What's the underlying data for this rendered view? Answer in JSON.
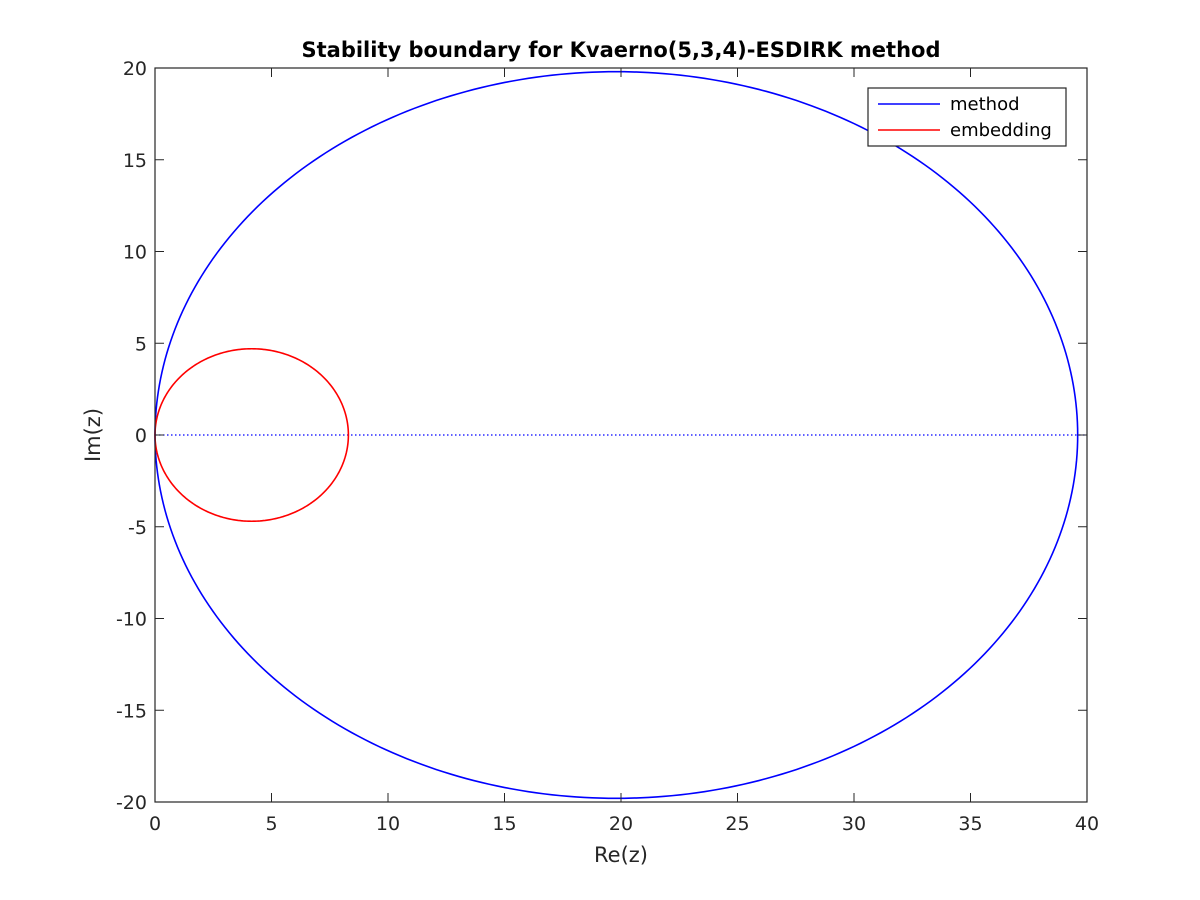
{
  "chart_data": {
    "type": "line",
    "title": "Stability boundary for Kvaerno(5,3,4)-ESDIRK method",
    "xlabel": "Re(z)",
    "ylabel": "Im(z)",
    "xlim": [
      0,
      40
    ],
    "ylim": [
      -20,
      20
    ],
    "xticks": [
      0,
      5,
      10,
      15,
      20,
      25,
      30,
      35,
      40
    ],
    "yticks": [
      -20,
      -15,
      -10,
      -5,
      0,
      5,
      10,
      15,
      20
    ],
    "xtick_labels": [
      "0",
      "5",
      "10",
      "15",
      "20",
      "25",
      "30",
      "35",
      "40"
    ],
    "ytick_labels": [
      "-20",
      "-15",
      "-10",
      "-5",
      "0",
      "5",
      "10",
      "15",
      "20"
    ],
    "grid": false,
    "legend_position": "top-right",
    "reference_line": {
      "y": 0,
      "style": "dotted",
      "color": "#0000ff"
    },
    "series": [
      {
        "name": "method",
        "color": "#0000ff",
        "shape": "closed-curve",
        "center": [
          19.8,
          0
        ],
        "semi_axis_re": 19.8,
        "semi_axis_im": 19.8
      },
      {
        "name": "embedding",
        "color": "#ff0000",
        "shape": "closed-curve",
        "center": [
          4.15,
          0
        ],
        "semi_axis_re": 4.15,
        "semi_axis_im": 4.7
      }
    ]
  }
}
